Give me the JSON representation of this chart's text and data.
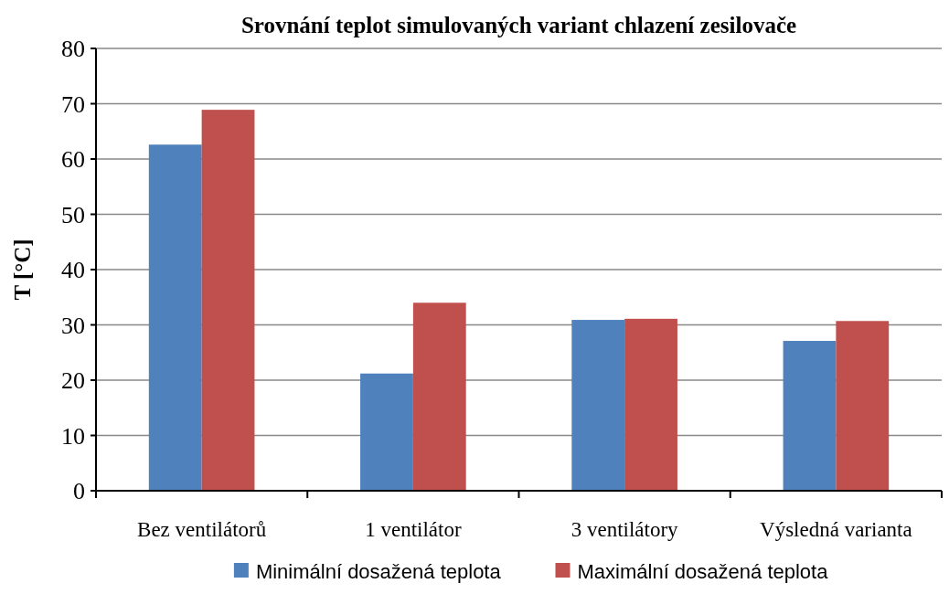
{
  "chart_data": {
    "type": "bar",
    "title": "Srovnání teplot simulovaných variant chlazení zesilovače",
    "ylabel": "T [°C]",
    "categories": [
      "Bez ventilátorů",
      "1 ventilátor",
      "3 ventilátory",
      "Výsledná varianta"
    ],
    "series": [
      {
        "name": "Minimální dosažená teplota",
        "color": "#4f81bd",
        "values": [
          62.6,
          21.2,
          30.9,
          27.1
        ]
      },
      {
        "name": "Maximální dosažená teplota",
        "color": "#c0504d",
        "values": [
          68.9,
          34.0,
          31.1,
          30.7
        ]
      }
    ],
    "ylim": [
      0,
      80
    ],
    "yticks": [
      0,
      10,
      20,
      30,
      40,
      50,
      60,
      70,
      80
    ],
    "grid": "y",
    "legend": "bottom"
  }
}
